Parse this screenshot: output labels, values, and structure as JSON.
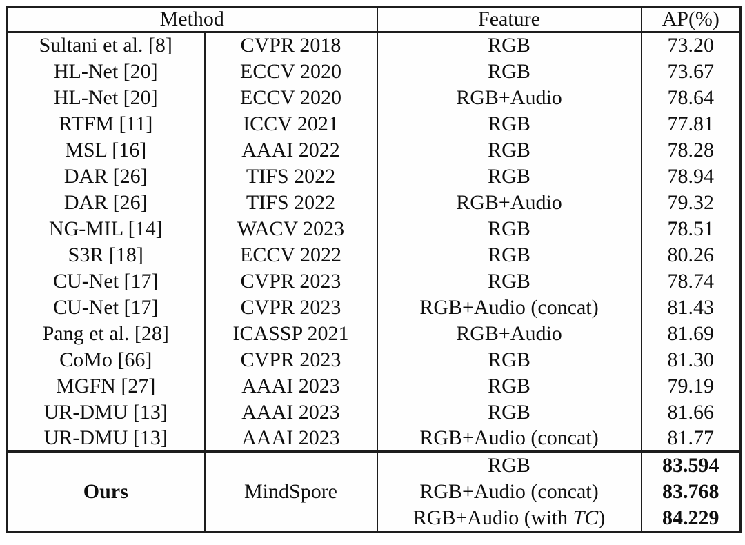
{
  "table": {
    "headers": {
      "method": "Method",
      "feature": "Feature",
      "ap": "AP(%)"
    },
    "rows": [
      {
        "method": "Sultani et al. [8]",
        "venue": "CVPR 2018",
        "feature": "RGB",
        "ap": "73.20"
      },
      {
        "method": "HL-Net [20]",
        "venue": "ECCV 2020",
        "feature": "RGB",
        "ap": "73.67"
      },
      {
        "method": "HL-Net [20]",
        "venue": "ECCV 2020",
        "feature": "RGB+Audio",
        "ap": "78.64"
      },
      {
        "method": "RTFM [11]",
        "venue": "ICCV 2021",
        "feature": "RGB",
        "ap": "77.81"
      },
      {
        "method": "MSL [16]",
        "venue": "AAAI 2022",
        "feature": "RGB",
        "ap": "78.28"
      },
      {
        "method": "DAR [26]",
        "venue": "TIFS 2022",
        "feature": "RGB",
        "ap": "78.94"
      },
      {
        "method": "DAR [26]",
        "venue": "TIFS 2022",
        "feature": "RGB+Audio",
        "ap": "79.32"
      },
      {
        "method": "NG-MIL [14]",
        "venue": "WACV 2023",
        "feature": "RGB",
        "ap": "78.51"
      },
      {
        "method": "S3R [18]",
        "venue": "ECCV 2022",
        "feature": "RGB",
        "ap": "80.26"
      },
      {
        "method": "CU-Net [17]",
        "venue": "CVPR 2023",
        "feature": "RGB",
        "ap": "78.74"
      },
      {
        "method": "CU-Net [17]",
        "venue": "CVPR 2023",
        "feature": "RGB+Audio (concat)",
        "ap": "81.43"
      },
      {
        "method": "Pang et al. [28]",
        "venue": "ICASSP 2021",
        "feature": "RGB+Audio",
        "ap": "81.69"
      },
      {
        "method": "CoMo [66]",
        "venue": "CVPR 2023",
        "feature": "RGB",
        "ap": "81.30"
      },
      {
        "method": "MGFN [27]",
        "venue": "AAAI 2023",
        "feature": "RGB",
        "ap": "79.19"
      },
      {
        "method": "UR-DMU [13]",
        "venue": "AAAI 2023",
        "feature": "RGB",
        "ap": "81.66"
      },
      {
        "method": "UR-DMU [13]",
        "venue": "AAAI 2023",
        "feature": "RGB+Audio (concat)",
        "ap": "81.77"
      }
    ],
    "ours": {
      "method": "Ours",
      "venue": "MindSpore",
      "entries": [
        {
          "feature_prefix": "RGB",
          "feature_italic": "",
          "feature_suffix": "",
          "ap": "83.594"
        },
        {
          "feature_prefix": "RGB+Audio (concat)",
          "feature_italic": "",
          "feature_suffix": "",
          "ap": "83.768"
        },
        {
          "feature_prefix": "RGB+Audio (with ",
          "feature_italic": "TC",
          "feature_suffix": ")",
          "ap": "84.229"
        }
      ]
    },
    "colors": {
      "border": "#1d1d1d",
      "text": "#0f0f0f",
      "background": "#ffffff"
    }
  }
}
